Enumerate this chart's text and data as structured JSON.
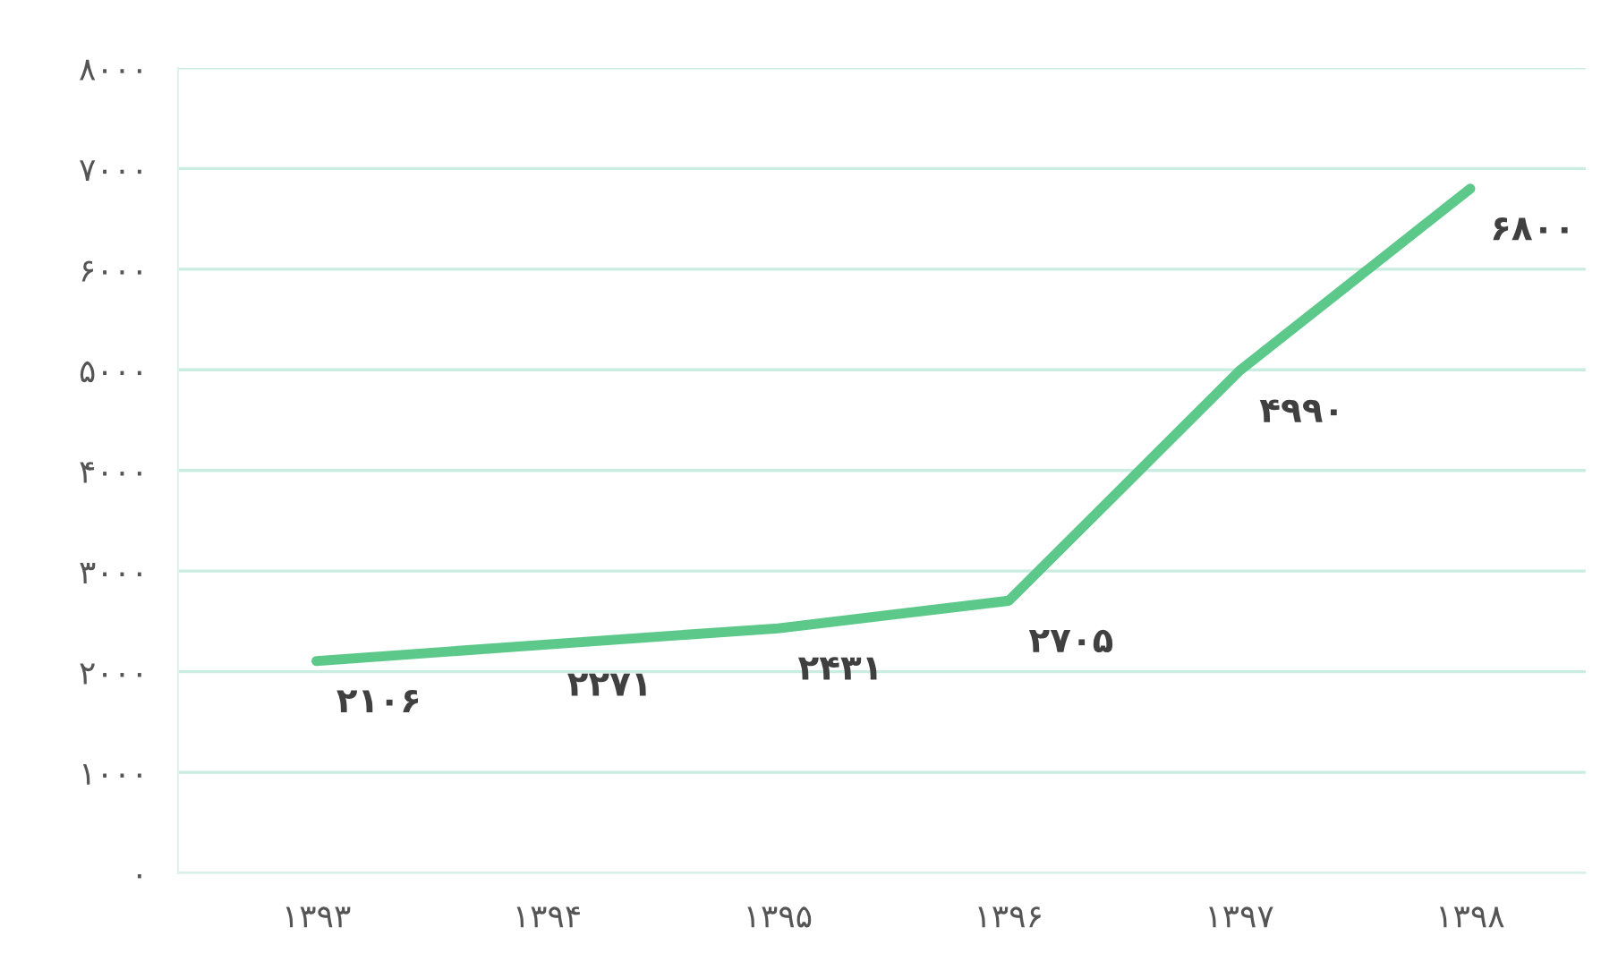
{
  "chart_data": {
    "type": "line",
    "categories": [
      "۱۳۹۳",
      "۱۳۹۴",
      "۱۳۹۵",
      "۱۳۹۶",
      "۱۳۹۷",
      "۱۳۹۸"
    ],
    "series": [
      {
        "color": "#5cc98b",
        "values": [
          2106,
          2271,
          2431,
          2705,
          4990,
          6800
        ],
        "value_labels": [
          "۲۱۰۶",
          "۲۲۷۱",
          "۲۴۳۱",
          "۲۷۰۵",
          "۴۹۹۰",
          "۶۸۰۰"
        ]
      }
    ],
    "ylim": [
      0,
      8000
    ],
    "yticks": [
      {
        "value": 0,
        "label": "۰"
      },
      {
        "value": 1000,
        "label": "۱۰۰۰"
      },
      {
        "value": 2000,
        "label": "۲۰۰۰"
      },
      {
        "value": 3000,
        "label": "۳۰۰۰"
      },
      {
        "value": 4000,
        "label": "۴۰۰۰"
      },
      {
        "value": 5000,
        "label": "۵۰۰۰"
      },
      {
        "value": 6000,
        "label": "۶۰۰۰"
      },
      {
        "value": 7000,
        "label": "۷۰۰۰"
      },
      {
        "value": 8000,
        "label": "۸۰۰۰"
      }
    ],
    "grid": "y",
    "marker": "none",
    "line_style": "solid"
  }
}
